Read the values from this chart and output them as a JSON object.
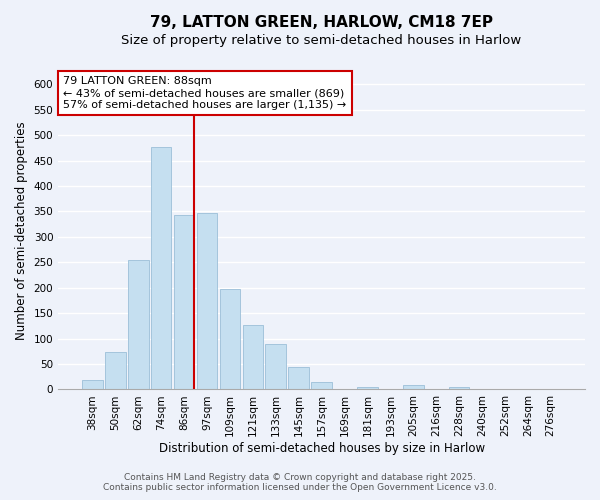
{
  "title": "79, LATTON GREEN, HARLOW, CM18 7EP",
  "subtitle": "Size of property relative to semi-detached houses in Harlow",
  "xlabel": "Distribution of semi-detached houses by size in Harlow",
  "ylabel": "Number of semi-detached properties",
  "bin_labels": [
    "38sqm",
    "50sqm",
    "62sqm",
    "74sqm",
    "86sqm",
    "97sqm",
    "109sqm",
    "121sqm",
    "133sqm",
    "145sqm",
    "157sqm",
    "169sqm",
    "181sqm",
    "193sqm",
    "205sqm",
    "216sqm",
    "228sqm",
    "240sqm",
    "252sqm",
    "264sqm",
    "276sqm"
  ],
  "bar_values": [
    18,
    74,
    255,
    477,
    344,
    347,
    197,
    127,
    90,
    45,
    15,
    0,
    5,
    0,
    8,
    0,
    4,
    0,
    0,
    0,
    0
  ],
  "bar_color": "#c5dff0",
  "bar_edge_color": "#9bbfd8",
  "annotation_title": "79 LATTON GREEN: 88sqm",
  "annotation_line1": "← 43% of semi-detached houses are smaller (869)",
  "annotation_line2": "57% of semi-detached houses are larger (1,135) →",
  "annotation_box_facecolor": "#ffffff",
  "annotation_box_edgecolor": "#cc0000",
  "line_color": "#cc0000",
  "ylim": [
    0,
    625
  ],
  "yticks": [
    0,
    50,
    100,
    150,
    200,
    250,
    300,
    350,
    400,
    450,
    500,
    550,
    600
  ],
  "footer1": "Contains HM Land Registry data © Crown copyright and database right 2025.",
  "footer2": "Contains public sector information licensed under the Open Government Licence v3.0.",
  "bg_color": "#eef2fa",
  "grid_color": "#ffffff",
  "title_fontsize": 11,
  "subtitle_fontsize": 9.5,
  "axis_label_fontsize": 8.5,
  "tick_fontsize": 7.5,
  "annotation_fontsize": 8,
  "footer_fontsize": 6.5
}
